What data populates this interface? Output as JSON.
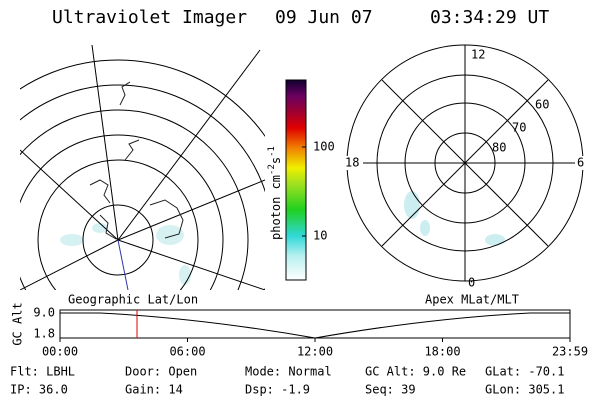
{
  "header": {
    "instrument": "Ultraviolet Imager",
    "date": "09 Jun 07",
    "time": "03:34:29 UT"
  },
  "colorbar": {
    "label": "photon cm",
    "sup1": "-2",
    "mid": "s",
    "sup2": "-1",
    "ticks": [
      "100",
      "10"
    ]
  },
  "polar": {
    "mlt_labels": [
      "12",
      "18",
      "6",
      "0"
    ],
    "mlat_labels": [
      "60",
      "70",
      "80"
    ]
  },
  "left_caption": "Geographic Lat/Lon",
  "right_caption": "Apex MLat/MLT",
  "alt_plot": {
    "ylabel": "GC Alt",
    "yticks": [
      "9.0",
      "1.8"
    ],
    "xticks": [
      "00:00",
      "06:00",
      "12:00",
      "18:00",
      "23:59"
    ]
  },
  "info": {
    "rows": [
      [
        "Flt: LBHL",
        "Door: Open",
        "Mode: Normal",
        "GC Alt: 9.0 Re",
        "GLat: -70.1"
      ],
      [
        "IP: 36.0",
        "Gain: 14",
        "Dsp:   -1.9",
        "Seq: 39",
        "GLon: 305.1"
      ]
    ]
  }
}
